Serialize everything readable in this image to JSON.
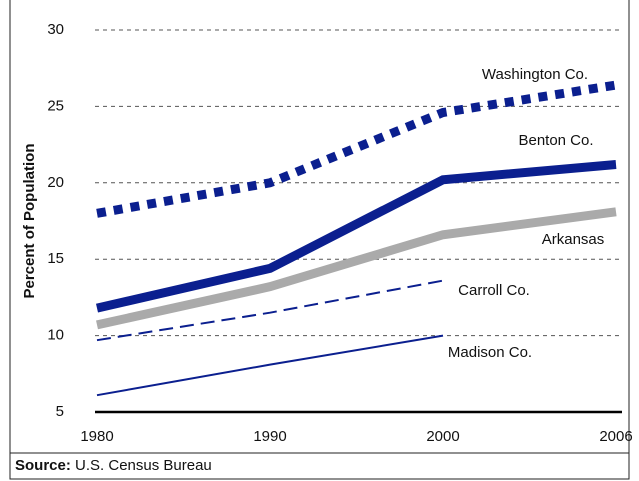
{
  "chart_data": {
    "type": "line",
    "y_label": "Percent of Population",
    "categories": [
      "1980",
      "1990",
      "2000",
      "2006"
    ],
    "ylim": [
      5,
      30
    ],
    "yticks": [
      5,
      10,
      15,
      20,
      25,
      30
    ],
    "grid": true,
    "series": [
      {
        "name": "Washington Co.",
        "color": "#0b1f8f",
        "line_style": "thick-dotted",
        "values": [
          18.0,
          20.0,
          24.6,
          26.4
        ]
      },
      {
        "name": "Benton Co.",
        "color": "#0b1f8f",
        "line_style": "thick",
        "values": [
          11.8,
          14.4,
          20.2,
          21.2
        ]
      },
      {
        "name": "Arkansas",
        "color": "#aaaaaa",
        "line_style": "thick",
        "values": [
          10.7,
          13.2,
          16.6,
          18.1
        ]
      },
      {
        "name": "Carroll Co.",
        "color": "#0b1f8f",
        "line_style": "thin-dashed",
        "values": [
          9.7,
          11.5,
          13.6,
          null
        ]
      },
      {
        "name": "Madison Co.",
        "color": "#0b1f8f",
        "line_style": "thin",
        "values": [
          6.1,
          8.1,
          10.0,
          null
        ]
      }
    ],
    "source_label": "Source:",
    "source": "U.S. Census Bureau"
  }
}
